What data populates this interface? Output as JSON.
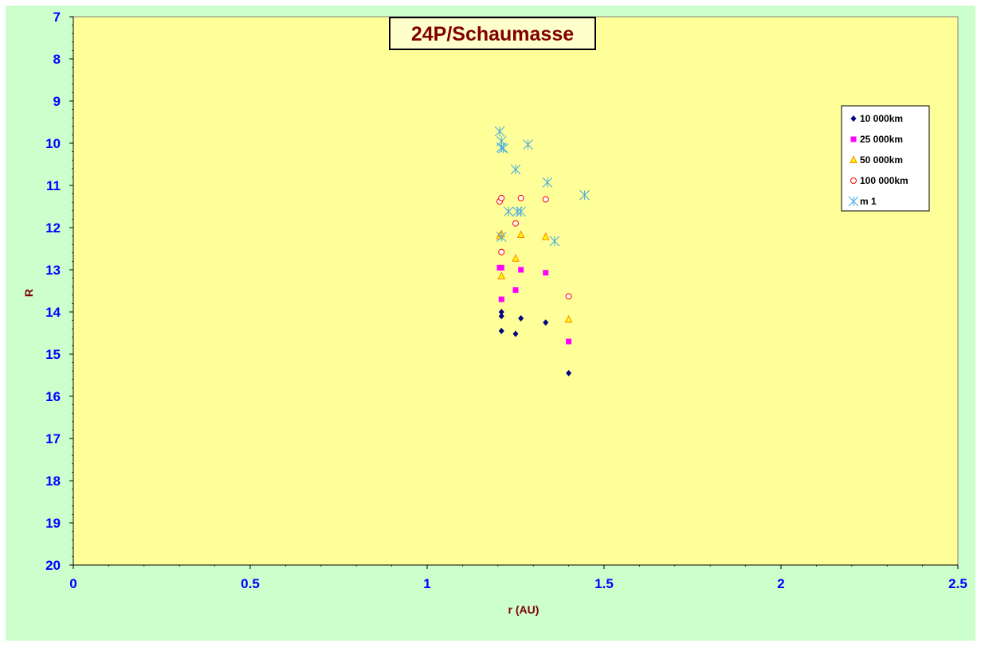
{
  "chart_data": {
    "type": "scatter",
    "title": "24P/Schaumasse",
    "xlabel": "r (AU)",
    "ylabel": "R",
    "xlim": [
      0,
      2.5
    ],
    "ylim": [
      7,
      20
    ],
    "y_inverted": true,
    "x_ticks": [
      "0",
      "0.5",
      "1",
      "1.5",
      "2",
      "2.5"
    ],
    "y_ticks": [
      "7",
      "8",
      "9",
      "10",
      "11",
      "12",
      "13",
      "14",
      "15",
      "16",
      "17",
      "18",
      "19",
      "20"
    ],
    "grid": false,
    "legend_position": "right",
    "series": [
      {
        "name": "10 000km",
        "marker": "diamond",
        "color": "#000080",
        "points": [
          [
            1.21,
            14.0
          ],
          [
            1.21,
            14.1
          ],
          [
            1.21,
            14.45
          ],
          [
            1.25,
            14.52
          ],
          [
            1.265,
            14.15
          ],
          [
            1.335,
            14.25
          ],
          [
            1.4,
            15.45
          ]
        ]
      },
      {
        "name": "25 000km",
        "marker": "square",
        "color": "#ff00ff",
        "points": [
          [
            1.205,
            12.95
          ],
          [
            1.21,
            12.95
          ],
          [
            1.21,
            13.7
          ],
          [
            1.25,
            13.48
          ],
          [
            1.265,
            13.0
          ],
          [
            1.335,
            13.07
          ],
          [
            1.4,
            14.7
          ]
        ]
      },
      {
        "name": "50 000km",
        "marker": "triangle",
        "color": "#ff8000",
        "fill": "#ffff00",
        "points": [
          [
            1.205,
            12.2
          ],
          [
            1.21,
            12.15
          ],
          [
            1.21,
            13.15
          ],
          [
            1.25,
            12.73
          ],
          [
            1.265,
            12.17
          ],
          [
            1.335,
            12.22
          ],
          [
            1.4,
            14.18
          ]
        ]
      },
      {
        "name": "100 000km",
        "marker": "circle",
        "color": "#ff0000",
        "fill": "#ffffff",
        "points": [
          [
            1.205,
            11.38
          ],
          [
            1.21,
            11.3
          ],
          [
            1.21,
            12.58
          ],
          [
            1.25,
            11.9
          ],
          [
            1.265,
            11.3
          ],
          [
            1.335,
            11.33
          ],
          [
            1.4,
            13.63
          ]
        ]
      },
      {
        "name": "m1",
        "marker": "star",
        "color": "#4eaee0",
        "points": [
          [
            1.205,
            9.72
          ],
          [
            1.21,
            9.95
          ],
          [
            1.21,
            10.1
          ],
          [
            1.215,
            10.12
          ],
          [
            1.21,
            12.22
          ],
          [
            1.23,
            11.62
          ],
          [
            1.25,
            10.62
          ],
          [
            1.255,
            11.62
          ],
          [
            1.265,
            11.62
          ],
          [
            1.285,
            10.03
          ],
          [
            1.34,
            10.93
          ],
          [
            1.36,
            12.32
          ],
          [
            1.445,
            11.23
          ]
        ]
      }
    ],
    "legend_labels": [
      "10 000km",
      "25 000km",
      "50 000km",
      "100 000km",
      "m 1"
    ]
  }
}
